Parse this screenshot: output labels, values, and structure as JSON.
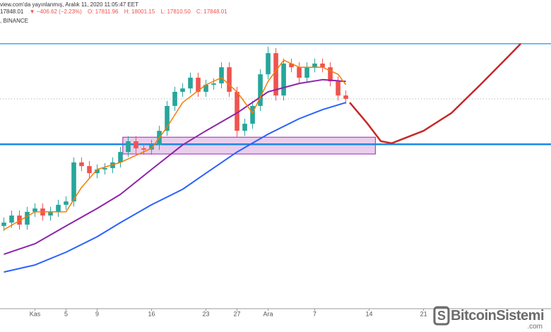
{
  "header": {
    "published": "view.com'da yayınlanmış, Aralık 11, 2020 11:05:47 EET",
    "price": "17848.01",
    "change": "▼ −406.62 (−2.23%)",
    "open": "O: 17811.96",
    "high": "H: 18001.15",
    "low": "L: 17810.50",
    "close": "C: 17848.01",
    "exchange": ", BINANCE"
  },
  "watermark": {
    "name": "BitcoinSistemi",
    "domain": ".com"
  },
  "chart_data": {
    "type": "candlestick",
    "xlim": [
      -3.5,
      67.4
    ],
    "ylim": [
      11610,
      20790
    ],
    "xticks": [
      {
        "value": 1,
        "label": "Kas"
      },
      5,
      9,
      16,
      23,
      27,
      {
        "value": 31,
        "label": "Ara"
      },
      {
        "value": 37,
        "label": "7"
      },
      {
        "value": 44,
        "label": "14"
      },
      {
        "value": 51,
        "label": "21"
      }
    ],
    "up_color": "#26a69a",
    "down_color": "#ef5350",
    "x": [
      -3,
      -2,
      -1,
      0,
      1,
      2,
      3,
      4,
      5,
      6,
      7,
      8,
      9,
      10,
      11,
      12,
      13,
      14,
      15,
      16,
      17,
      18,
      19,
      20,
      21,
      22,
      23,
      24,
      25,
      26,
      27,
      28,
      29,
      30,
      31,
      32,
      33,
      34,
      35,
      36,
      37,
      38,
      39,
      40,
      41
    ],
    "open": [
      14070,
      14170,
      14380,
      14110,
      14490,
      14590,
      14380,
      14490,
      14700,
      14800,
      15960,
      15850,
      15640,
      15750,
      15790,
      15960,
      16270,
      16590,
      16380,
      16340,
      16480,
      16900,
      17640,
      18060,
      18160,
      18480,
      18060,
      18270,
      18310,
      18790,
      18060,
      16900,
      17110,
      17640,
      18580,
      19210,
      17950,
      18900,
      18790,
      18480,
      18790,
      18900,
      18790,
      18370,
      17950
    ],
    "high": [
      14320,
      14530,
      14530,
      14640,
      14740,
      14740,
      14640,
      14850,
      14950,
      16110,
      16110,
      16000,
      15900,
      15940,
      16110,
      16420,
      16740,
      16740,
      16530,
      16630,
      17050,
      17790,
      18210,
      18310,
      18630,
      18630,
      18420,
      18460,
      18940,
      18940,
      18210,
      17260,
      17790,
      18730,
      19400,
      19360,
      19050,
      19050,
      18940,
      18940,
      19050,
      19050,
      18940,
      18520,
      18100
    ],
    "low": [
      13920,
      14020,
      13960,
      13960,
      14340,
      14230,
      14230,
      14340,
      14550,
      14650,
      15700,
      15490,
      15490,
      15600,
      15640,
      15810,
      16120,
      16230,
      16190,
      16190,
      16330,
      16750,
      17490,
      17910,
      18010,
      17910,
      17910,
      18120,
      18160,
      17910,
      16700,
      16750,
      16960,
      17490,
      18430,
      17800,
      17800,
      18640,
      18330,
      18330,
      18640,
      18640,
      18220,
      17800,
      17700
    ],
    "close": [
      14170,
      14380,
      14110,
      14490,
      14590,
      14380,
      14490,
      14700,
      14800,
      15960,
      15850,
      15640,
      15750,
      15790,
      15960,
      16270,
      16590,
      16380,
      16340,
      16480,
      16900,
      17640,
      18060,
      18160,
      18480,
      18060,
      18270,
      18310,
      18790,
      18060,
      16900,
      17110,
      17640,
      18580,
      19210,
      17950,
      18900,
      18790,
      18480,
      18790,
      18900,
      18790,
      18370,
      17950,
      17850
    ],
    "lines": [
      {
        "color": "#2962ff",
        "width": 2,
        "x": [
          -3,
          1,
          5,
          9,
          12,
          16,
          20,
          23,
          27,
          31,
          35,
          38,
          41
        ],
        "values": [
          12700,
          12910,
          13290,
          13750,
          14170,
          14700,
          15160,
          15640,
          16270,
          16800,
          17260,
          17530,
          17740
        ]
      },
      {
        "color": "#8e24aa",
        "width": 2,
        "x": [
          -3,
          1,
          5,
          9,
          12,
          16,
          20,
          23,
          27,
          31,
          35,
          38,
          41
        ],
        "values": [
          13230,
          13540,
          14070,
          14590,
          15010,
          15750,
          16480,
          16900,
          17430,
          18060,
          18310,
          18420,
          18370
        ]
      },
      {
        "color": "#f57c00",
        "width": 1.5,
        "x": [
          -3,
          1,
          5,
          7,
          9,
          12,
          16,
          18,
          20,
          23,
          25,
          27,
          29,
          31,
          33,
          35,
          38,
          40,
          41
        ],
        "values": [
          13960,
          14490,
          14490,
          15220,
          15750,
          15960,
          16380,
          17010,
          17740,
          18270,
          18480,
          18060,
          17430,
          18370,
          19000,
          18790,
          18790,
          18580,
          18270
        ]
      },
      {
        "color": "#c62828",
        "width": 2.5,
        "x": [
          41.5,
          43.8,
          45.5,
          46.9,
          51,
          54.6,
          58.3,
          61.9,
          63.5
        ],
        "values": [
          17740,
          17110,
          16590,
          16530,
          16900,
          17430,
          18270,
          19110,
          19490
        ]
      }
    ],
    "hlines": [
      {
        "value": 19490,
        "color": "#42a5f5",
        "width": 1.5
      },
      {
        "value": 16500,
        "color": "#1e88e5",
        "width": 2.5
      }
    ],
    "zone": {
      "x": [
        12.3,
        44.8
      ],
      "y": [
        16210,
        16710
      ],
      "fill": "rgba(206,147,216,0.45)",
      "stroke": "#9c27b0"
    }
  }
}
